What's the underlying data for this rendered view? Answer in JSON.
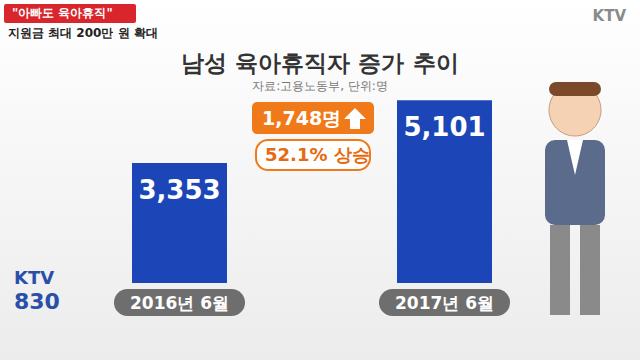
{
  "chart_data": {
    "type": "bar",
    "title": "남성 육아휴직자 증가 추이",
    "subtitle": "자료:고용노동부, 단위:명",
    "categories": [
      "2016년 6월",
      "2017년 6월"
    ],
    "values": [
      3353,
      5101
    ],
    "value_labels": [
      "3,353",
      "5,101"
    ],
    "data_labels": true,
    "color": "#1c46b8",
    "ylim": [
      0,
      5500
    ],
    "tick_labels": "x",
    "grid": false,
    "annotations": [
      "1,748명",
      "52.1% 상승"
    ]
  },
  "header": {
    "tag": "\"아빠도 육아휴직\"",
    "headline": "지원금 최대 200만 원 확대"
  },
  "logos": {
    "top_right": "KTV",
    "bottom_left": "KTV 830"
  }
}
